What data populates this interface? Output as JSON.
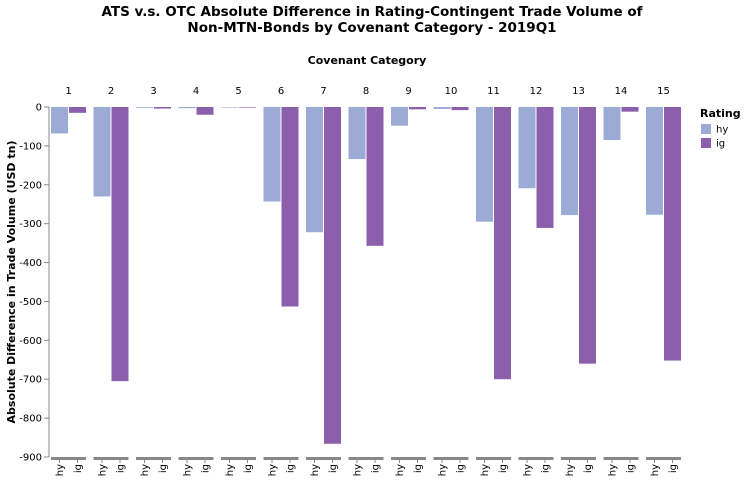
{
  "chart_data": {
    "type": "bar",
    "title_lines": [
      "ATS v.s. OTC Absolute Difference in Rating-Contingent Trade Volume of",
      "Non-MTN-Bonds by Covenant Category - 2019Q1"
    ],
    "column_axis_title": "Covenant Category",
    "ylabel": "Absolute Difference in Trade Volume (USD tn)",
    "ylim": [
      -900,
      0
    ],
    "yticks": [
      0,
      -100,
      -200,
      -300,
      -400,
      -500,
      -600,
      -700,
      -800,
      -900
    ],
    "categories": [
      "1",
      "2",
      "3",
      "4",
      "5",
      "6",
      "7",
      "8",
      "9",
      "10",
      "11",
      "12",
      "13",
      "14",
      "15"
    ],
    "sub_categories": [
      "hy",
      "ig"
    ],
    "series": [
      {
        "name": "hy",
        "color": "#9cabd6",
        "values": [
          -68,
          -230,
          -2,
          -3,
          -1,
          -243,
          -322,
          -134,
          -48,
          -5,
          -295,
          -209,
          -278,
          -85,
          -277
        ]
      },
      {
        "name": "ig",
        "color": "#8c5fad",
        "values": [
          -15,
          -705,
          -4,
          -20,
          -1,
          -513,
          -866,
          -357,
          -6,
          -8,
          -700,
          -311,
          -660,
          -12,
          -652
        ]
      }
    ],
    "legend": {
      "title": "Rating",
      "position": "right"
    },
    "grid": false
  }
}
